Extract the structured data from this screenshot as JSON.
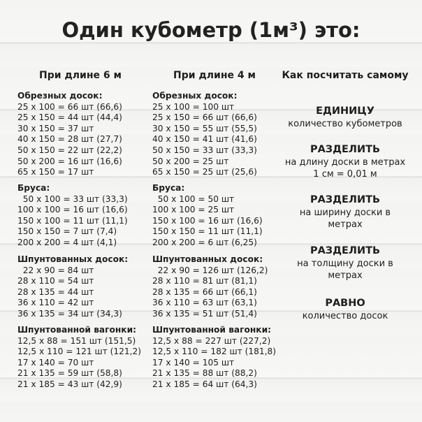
{
  "title": "Один кубометр (1м³) это:",
  "headers": [
    "При длине 6 м",
    "При длине 4 м",
    "Как посчитать самому"
  ],
  "col6": [
    {
      "heading": "Обрезных досок:",
      "rows": [
        "25 х 100 = 66 шт (66,6)",
        "25 х 150 = 44 шт (44,4)",
        "30 х 150 = 37 шт",
        "40 х 150 = 28 шт (27,7)",
        "50 х 150 = 22 шт (22,2)",
        "50 х 200 = 16 шт (16,6)",
        "65 х 150 = 17 шт"
      ]
    },
    {
      "heading": "Бруса:",
      "rows": [
        "  50 х 100 = 33 шт (33,3)",
        "100 х 100 = 16 шт (16,6)",
        "150 х 100 = 11 шт (11,1)",
        "150 х 150 = 7 шт (7,4)",
        "200 х 200 = 4 шт (4,1)"
      ]
    },
    {
      "heading": "Шпунтованных досок:",
      "rows": [
        "  22 х 90 = 84 шт",
        "28 х 110 = 54 шт",
        "28 х 135 = 44 шт",
        "36 х 110 = 42 шт",
        "36 х 135 = 34 шт (34,3)"
      ]
    },
    {
      "heading": "Шпунтованной вагонки:",
      "rows": [
        "12,5 х 88 = 151 шт (151,5)",
        "12,5 х 110 = 121 шт (121,2)",
        "17 х 140 = 70 шт",
        "21 х 135 = 59 шт (58,8)",
        "21 х 185 = 43 шт (42,9)"
      ]
    }
  ],
  "col4": [
    {
      "heading": "Обрезных досок:",
      "rows": [
        "25 х 100 = 100 шт",
        "25 х 150 = 66 шт (66,6)",
        "30 х 150 = 55 шт (55,5)",
        "40 х 150 = 41 шт (41,6)",
        "50 х 150 = 33 шт (33,3)",
        "50 х 200 = 25 шт",
        "65 х 150 = 25 шт (25,6)"
      ]
    },
    {
      "heading": "Бруса:",
      "rows": [
        "  50 х 100 = 50 шт",
        "100 х 100 = 25 шт",
        "150 х 100 = 16 шт (16,6)",
        "150 х 150 = 11 шт (11,1)",
        "200 х 200 = 6 шт (6,25)"
      ]
    },
    {
      "heading": "Шпунтованных досок:",
      "rows": [
        "  22 х 90 = 126 шт (126,2)",
        "28 х 110 = 81 шт (81,1)",
        "28 х 135 = 66 шт (66,1)",
        "36 х 110 = 63 шт (63,1)",
        "36 х 135 = 51 шт (51,4)"
      ]
    },
    {
      "heading": "Шпунтованной вагонки:",
      "rows": [
        "12,5 х 88 = 227 шт (227,2)",
        "12,5 х 110 = 182 шт (181,8)",
        "17 х 140 = 105 шт",
        "21 х 135 = 88 шт (88,2)",
        "21 х 185 = 64 шт (64,3)"
      ]
    }
  ],
  "steps": [
    {
      "bold": "ЕДИНИЦУ",
      "text": [
        "количество кубометров"
      ]
    },
    {
      "bold": "РАЗДЕЛИТЬ",
      "text": [
        "на длину доски в метрах",
        "1 см = 0,01 м"
      ]
    },
    {
      "bold": "РАЗДЕЛИТЬ",
      "text": [
        "на ширину доски в",
        "метрах"
      ]
    },
    {
      "bold": "РАЗДЕЛИТЬ",
      "text": [
        "на толщину доски в",
        "метрах"
      ]
    },
    {
      "bold": "РАВНО",
      "text": [
        "количество досок"
      ]
    }
  ]
}
